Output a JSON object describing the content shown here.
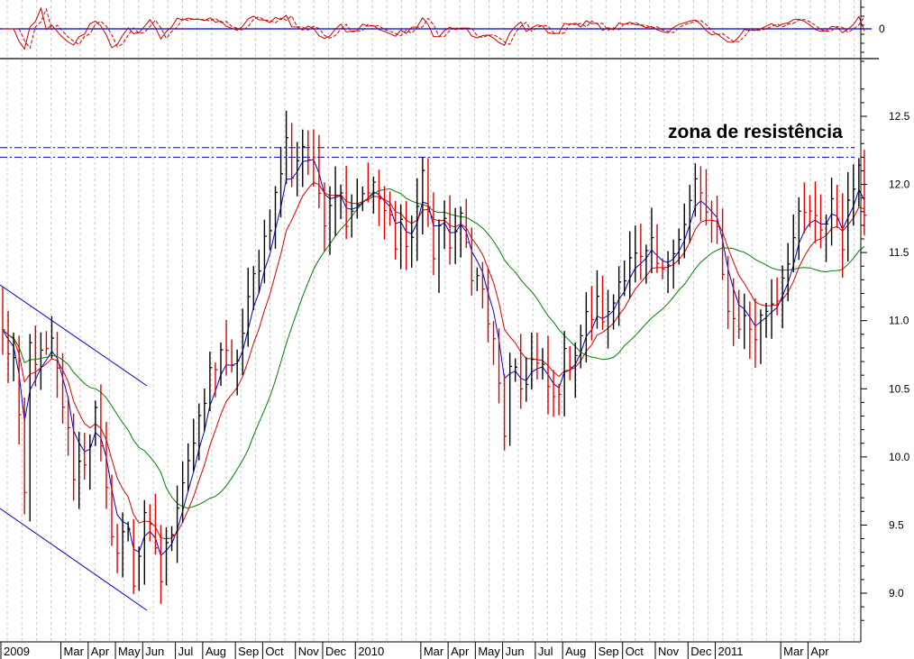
{
  "chart_data": {
    "type": "bar",
    "annotation": "zona de resistência",
    "price_panel": {
      "ylim": [
        8.75,
        12.75
      ],
      "y_ticks": [
        "9.0",
        "9.5",
        "10.0",
        "10.5",
        "11.0",
        "11.5",
        "12.0",
        "12.5"
      ],
      "resistance_levels": [
        12.2,
        12.27
      ],
      "series": [
        {
          "color": "#0000cc",
          "type": "moving-average-short"
        },
        {
          "color": "#dd0000",
          "type": "moving-average-medium"
        },
        {
          "color": "#008000",
          "type": "moving-average-long"
        }
      ],
      "anchor_closes": [
        [
          0,
          10.9
        ],
        [
          2,
          10.7
        ],
        [
          4,
          9.7
        ],
        [
          5,
          10.8
        ],
        [
          7,
          10.7
        ],
        [
          9,
          10.8
        ],
        [
          11,
          10.4
        ],
        [
          13,
          9.9
        ],
        [
          15,
          10.0
        ],
        [
          17,
          10.3
        ],
        [
          19,
          9.7
        ],
        [
          21,
          9.3
        ],
        [
          23,
          9.5
        ],
        [
          24,
          9.1
        ],
        [
          26,
          9.5
        ],
        [
          28,
          9.35
        ],
        [
          29,
          9.1
        ],
        [
          30,
          9.3
        ],
        [
          32,
          9.7
        ],
        [
          34,
          10.0
        ],
        [
          36,
          10.2
        ],
        [
          38,
          10.6
        ],
        [
          40,
          10.8
        ],
        [
          42,
          10.6
        ],
        [
          44,
          10.9
        ],
        [
          46,
          11.3
        ],
        [
          48,
          11.6
        ],
        [
          50,
          11.9
        ],
        [
          52,
          12.3
        ],
        [
          53,
          12.1
        ],
        [
          55,
          12.3
        ],
        [
          57,
          12.1
        ],
        [
          59,
          11.8
        ],
        [
          61,
          12.0
        ],
        [
          63,
          11.8
        ],
        [
          65,
          11.9
        ],
        [
          67,
          12.0
        ],
        [
          69,
          11.9
        ],
        [
          71,
          11.7
        ],
        [
          72,
          11.5
        ],
        [
          73,
          11.7
        ],
        [
          75,
          11.6
        ],
        [
          77,
          12.1
        ],
        [
          79,
          11.5
        ],
        [
          80,
          11.7
        ],
        [
          82,
          11.6
        ],
        [
          84,
          11.7
        ],
        [
          86,
          11.4
        ],
        [
          88,
          11.2
        ],
        [
          90,
          10.8
        ],
        [
          91,
          10.5
        ],
        [
          92,
          10.2
        ],
        [
          93,
          10.6
        ],
        [
          95,
          10.5
        ],
        [
          97,
          10.7
        ],
        [
          99,
          10.6
        ],
        [
          101,
          10.4
        ],
        [
          103,
          10.7
        ],
        [
          105,
          10.8
        ],
        [
          107,
          11.0
        ],
        [
          109,
          11.1
        ],
        [
          111,
          11.0
        ],
        [
          113,
          11.3
        ],
        [
          115,
          11.5
        ],
        [
          117,
          11.4
        ],
        [
          119,
          11.5
        ],
        [
          121,
          11.3
        ],
        [
          123,
          11.6
        ],
        [
          125,
          11.7
        ],
        [
          127,
          12.0
        ],
        [
          129,
          11.8
        ],
        [
          131,
          11.6
        ],
        [
          132,
          11.3
        ],
        [
          134,
          11.0
        ],
        [
          136,
          11.0
        ],
        [
          138,
          10.9
        ],
        [
          140,
          11.1
        ],
        [
          142,
          11.2
        ],
        [
          144,
          11.5
        ],
        [
          146,
          11.7
        ],
        [
          148,
          11.8
        ],
        [
          150,
          11.6
        ],
        [
          152,
          11.9
        ],
        [
          154,
          11.6
        ],
        [
          156,
          12.0
        ],
        [
          157,
          12.25
        ],
        [
          158,
          11.75
        ]
      ]
    },
    "oscillator_panel": {
      "zero_label": "0",
      "series": [
        {
          "color": "#cc0000",
          "style": "solid"
        },
        {
          "color": "#cc0000",
          "style": "dashed"
        }
      ]
    },
    "x_axis": {
      "months": [
        {
          "label": "2009",
          "week": 0
        },
        {
          "label": "Mar",
          "week": 11
        },
        {
          "label": "Apr",
          "week": 16
        },
        {
          "label": "May",
          "week": 21
        },
        {
          "label": "Jun",
          "week": 26
        },
        {
          "label": "Jul",
          "week": 32
        },
        {
          "label": "Aug",
          "week": 37
        },
        {
          "label": "Sep",
          "week": 43
        },
        {
          "label": "Oct",
          "week": 48
        },
        {
          "label": "Nov",
          "week": 54
        },
        {
          "label": "Dec",
          "week": 59
        },
        {
          "label": "2010",
          "week": 65
        },
        {
          "label": "Mar",
          "week": 77
        },
        {
          "label": "Apr",
          "week": 82
        },
        {
          "label": "May",
          "week": 87
        },
        {
          "label": "Jun",
          "week": 92
        },
        {
          "label": "Jul",
          "week": 98
        },
        {
          "label": "Aug",
          "week": 103
        },
        {
          "label": "Sep",
          "week": 109
        },
        {
          "label": "Oct",
          "week": 114
        },
        {
          "label": "Nov",
          "week": 120
        },
        {
          "label": "Dec",
          "week": 126
        },
        {
          "label": "2011",
          "week": 131
        },
        {
          "label": "Mar",
          "week": 143
        },
        {
          "label": "Apr",
          "week": 148
        }
      ]
    },
    "channel": {
      "color": "#0000cc"
    }
  }
}
